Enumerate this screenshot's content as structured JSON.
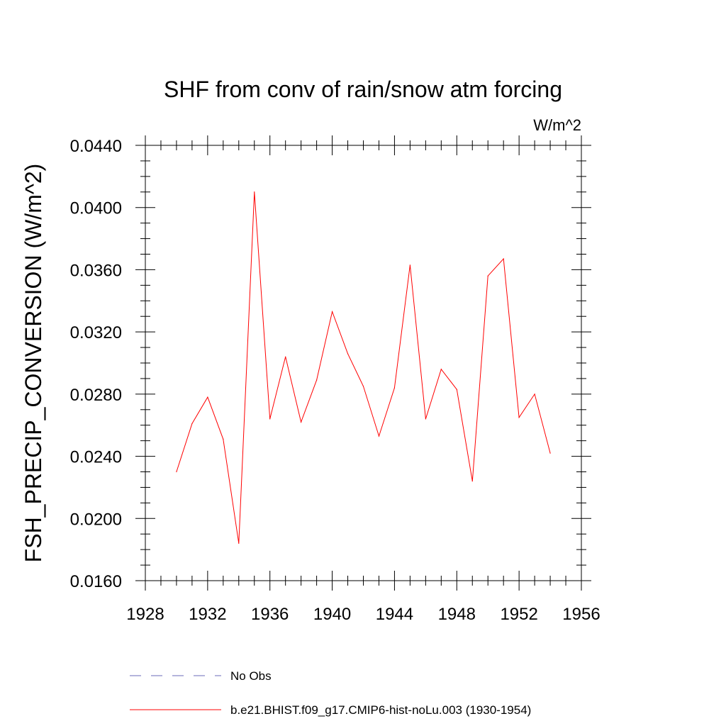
{
  "chart_data": {
    "type": "line",
    "title": "SHF from conv of rain/snow atm forcing",
    "units": "W/m^2",
    "ylabel": "FSH_PRECIP_CONVERSION  (W/m^2)",
    "xlabel": "",
    "xlim": [
      1928,
      1956
    ],
    "ylim": [
      0.016,
      0.044
    ],
    "x_ticks": [
      1928,
      1932,
      1936,
      1940,
      1944,
      1948,
      1952,
      1956
    ],
    "x_tick_labels": [
      "1928",
      "1932",
      "1936",
      "1940",
      "1944",
      "1948",
      "1952",
      "1956"
    ],
    "y_ticks": [
      0.016,
      0.02,
      0.024,
      0.028,
      0.032,
      0.036,
      0.04,
      0.044
    ],
    "y_tick_labels": [
      "0.0160",
      "0.0200",
      "0.0240",
      "0.0280",
      "0.0320",
      "0.0360",
      "0.0400",
      "0.0440"
    ],
    "grid": false,
    "legend_placement": "bottom",
    "series": [
      {
        "name": "b.e21.BHIST.f09_g17.CMIP6-hist-noLu.003 (1930-1954)",
        "color": "#ff0000",
        "style": "solid",
        "x": [
          1930,
          1931,
          1932,
          1933,
          1934,
          1935,
          1936,
          1937,
          1938,
          1939,
          1940,
          1941,
          1942,
          1943,
          1944,
          1945,
          1946,
          1947,
          1948,
          1949,
          1950,
          1951,
          1952,
          1953,
          1954
        ],
        "y": [
          0.023,
          0.0261,
          0.0278,
          0.0251,
          0.0184,
          0.041,
          0.0264,
          0.0304,
          0.0262,
          0.0289,
          0.0333,
          0.0306,
          0.0285,
          0.0253,
          0.0284,
          0.0363,
          0.0264,
          0.0296,
          0.0283,
          0.0224,
          0.0356,
          0.0367,
          0.0265,
          0.028,
          0.0242
        ]
      }
    ],
    "legend": [
      {
        "label": "No Obs",
        "color": "#6b6bb8",
        "style": "dashed"
      },
      {
        "label": "b.e21.BHIST.f09_g17.CMIP6-hist-noLu.003 (1930-1954)",
        "color": "#ff0000",
        "style": "solid"
      }
    ]
  }
}
